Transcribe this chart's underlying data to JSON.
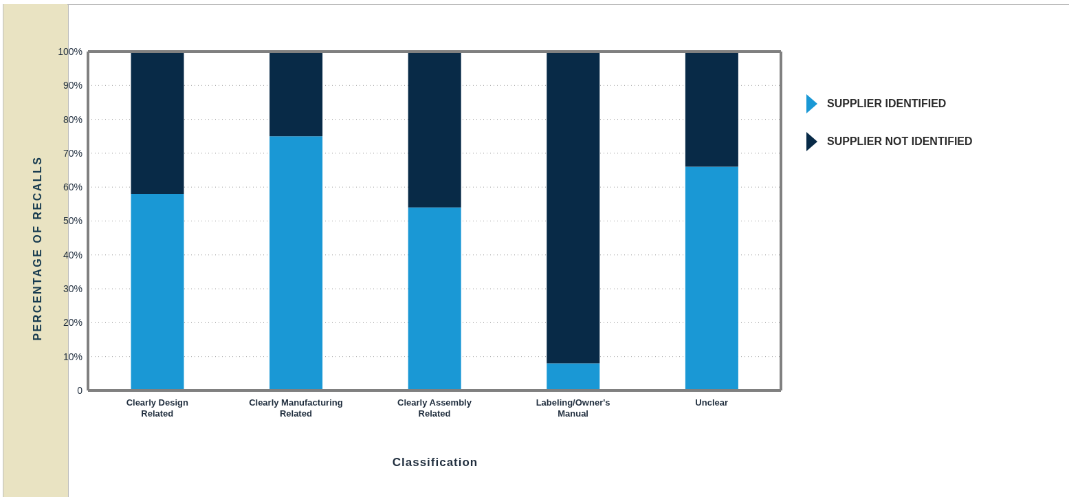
{
  "chart_data": {
    "type": "bar",
    "stacked": true,
    "xlabel": "Classification",
    "ylabel": "PERCENTAGE OF RECALLS",
    "categories": [
      "Clearly Design Related",
      "Clearly Manufacturing Related",
      "Clearly Assembly Related",
      "Labeling/Owner's Manual",
      "Unclear"
    ],
    "series": [
      {
        "name": "SUPPLIER IDENTIFIED",
        "color": "#1a98d5",
        "values": [
          58,
          75,
          54,
          8,
          66
        ]
      },
      {
        "name": "SUPPLIER NOT IDENTIFIED",
        "color": "#082a47",
        "values": [
          42,
          25,
          46,
          92,
          34
        ]
      }
    ],
    "ylim": [
      0,
      100
    ],
    "yticks": [
      {
        "value": 0,
        "label": "0"
      },
      {
        "value": 10,
        "label": "10%"
      },
      {
        "value": 20,
        "label": "20%"
      },
      {
        "value": 30,
        "label": "30%"
      },
      {
        "value": 40,
        "label": "40%"
      },
      {
        "value": 50,
        "label": "50%"
      },
      {
        "value": 60,
        "label": "60%"
      },
      {
        "value": 70,
        "label": "70%"
      },
      {
        "value": 80,
        "label": "80%"
      },
      {
        "value": 90,
        "label": "90%"
      },
      {
        "value": 100,
        "label": "100%"
      }
    ],
    "grid": "y",
    "legend": "top right"
  }
}
